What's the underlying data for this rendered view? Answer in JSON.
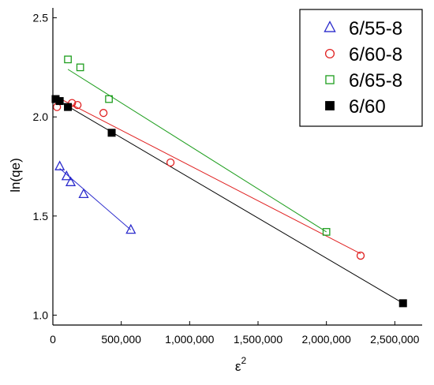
{
  "chart_data": {
    "type": "scatter",
    "title": "",
    "xlabel": "ε",
    "xlabel_superscript": "2",
    "ylabel": "ln(qe)",
    "xlim": [
      0,
      2700000
    ],
    "ylim": [
      0.95,
      2.55
    ],
    "xticks": [
      0,
      500000,
      1000000,
      1500000,
      2000000,
      2500000
    ],
    "xtick_labels": [
      "0",
      "500,000",
      "1,000,000",
      "1,500,000",
      "2,000,000",
      "2,500,000"
    ],
    "yticks": [
      1.0,
      1.5,
      2.0,
      2.5
    ],
    "ytick_labels": [
      "1.0",
      "1.5",
      "2.0",
      "2.5"
    ],
    "grid": false,
    "legend_position": "top-right",
    "series": [
      {
        "name": "6/55-8",
        "marker": "triangle-open",
        "color": "#2b2bcc",
        "points": [
          [
            50000,
            1.75
          ],
          [
            100000,
            1.7
          ],
          [
            130000,
            1.67
          ],
          [
            225000,
            1.61
          ],
          [
            570000,
            1.43
          ]
        ],
        "fit": [
          [
            50000,
            1.74
          ],
          [
            570000,
            1.43
          ]
        ]
      },
      {
        "name": "6/60-8",
        "marker": "circle-open",
        "color": "#e02020",
        "points": [
          [
            30000,
            2.05
          ],
          [
            140000,
            2.07
          ],
          [
            180000,
            2.06
          ],
          [
            370000,
            2.02
          ],
          [
            860000,
            1.77
          ],
          [
            2250000,
            1.3
          ]
        ],
        "fit": [
          [
            30000,
            2.1
          ],
          [
            2250000,
            1.31
          ]
        ]
      },
      {
        "name": "6/65-8",
        "marker": "square-open",
        "color": "#1e9e1e",
        "points": [
          [
            110000,
            2.29
          ],
          [
            200000,
            2.25
          ],
          [
            410000,
            2.09
          ],
          [
            2000000,
            1.42
          ]
        ],
        "fit": [
          [
            110000,
            2.24
          ],
          [
            2000000,
            1.42
          ]
        ]
      },
      {
        "name": "6/60",
        "marker": "square-filled",
        "color": "#000000",
        "points": [
          [
            20000,
            2.09
          ],
          [
            50000,
            2.08
          ],
          [
            110000,
            2.05
          ],
          [
            430000,
            1.92
          ],
          [
            2560000,
            1.06
          ]
        ],
        "fit": [
          [
            20000,
            2.09
          ],
          [
            2560000,
            1.06
          ]
        ]
      }
    ]
  }
}
